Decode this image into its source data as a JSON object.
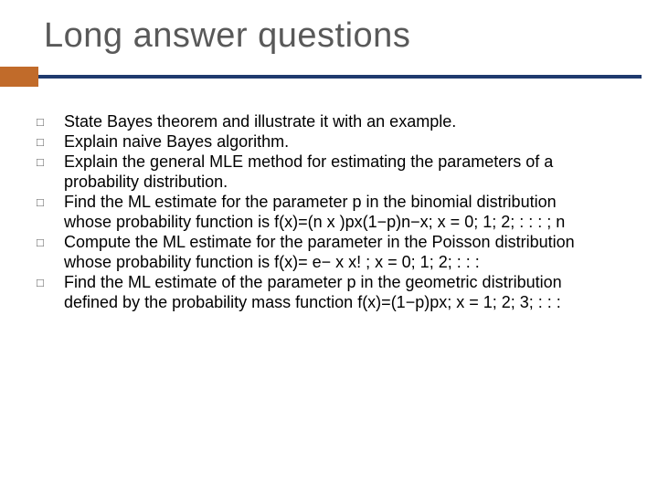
{
  "slide": {
    "title": "Long answer questions",
    "title_color": "#595959",
    "title_fontsize": 38,
    "accent_color": "#c16b2a",
    "rule_color": "#1f3a6e",
    "background_color": "#ffffff",
    "bullet_glyph": "□",
    "bullet_color": "#595959",
    "body_fontsize": 18,
    "body_color": "#000000",
    "items": [
      "State Bayes theorem and illustrate it with an example.",
      "Explain naive Bayes algorithm.",
      " Explain the general MLE method for estimating the parameters of a probability distribution.",
      " Find the ML estimate for the parameter p in the binomial distribution whose probability function is f(x)=(n x )px(1−p)n−x; x = 0; 1; 2; : : : ; n",
      "Compute the ML estimate for the parameter in the Poisson distribution whose probability function is f(x)= e−  x x! ; x = 0; 1; 2; : : :",
      "Find the ML estimate of the parameter p in the geometric distribution defined by the probability mass function f(x)=(1−p)px; x = 1; 2; 3; : : :"
    ]
  }
}
